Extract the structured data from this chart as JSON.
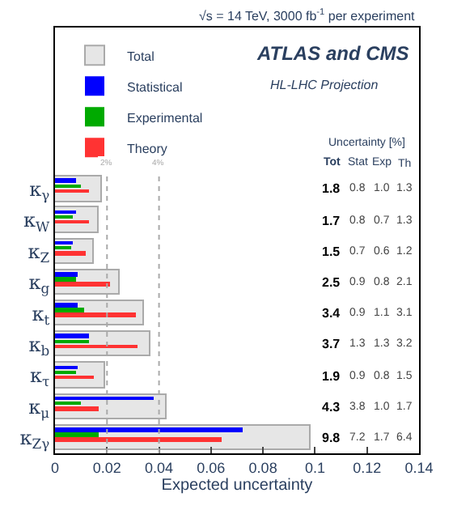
{
  "chart_data": {
    "type": "bar",
    "orientation": "horizontal",
    "title": "ATLAS and CMS",
    "subtitle": "HL-LHC Projection",
    "xlabel": "Expected uncertainty",
    "categories": [
      "κ$_{γ}$",
      "κ$_{W}$",
      "κ$_{Z}$",
      "κ$_{g}$",
      "κ$_{t}$",
      "κ$_{b}$",
      "κ$_{τ}$",
      "κ$_{μ}$",
      "κ$_{Zγ}$"
    ],
    "series": [
      {
        "name": "Total",
        "color": "#e6e6e6",
        "values": [
          0.018,
          0.017,
          0.015,
          0.025,
          0.034,
          0.037,
          0.019,
          0.043,
          0.098
        ]
      },
      {
        "name": "Statistical",
        "color": "#0000ff",
        "values": [
          0.008,
          0.008,
          0.007,
          0.009,
          0.009,
          0.013,
          0.009,
          0.038,
          0.072
        ]
      },
      {
        "name": "Experimental",
        "color": "#00aa00",
        "values": [
          0.01,
          0.007,
          0.006,
          0.008,
          0.011,
          0.013,
          0.008,
          0.01,
          0.017
        ]
      },
      {
        "name": "Theory",
        "color": "#ff3333",
        "values": [
          0.013,
          0.013,
          0.012,
          0.021,
          0.031,
          0.032,
          0.015,
          0.017,
          0.064
        ]
      }
    ],
    "xlim": [
      0,
      0.14
    ],
    "xticks": [
      0,
      0.02,
      0.04,
      0.06,
      0.08,
      0.1,
      0.12,
      0.14
    ],
    "ref_lines": [
      {
        "axis": "x",
        "value": 0.02,
        "label": "2%",
        "color": "#aaaaaa",
        "line_style": "dotted"
      },
      {
        "axis": "x",
        "value": 0.04,
        "label": "4%",
        "color": "#aaaaaa",
        "line_style": "dotted"
      }
    ],
    "annotations": [
      "√s = 14 TeV, 3000 fb$^{-1}$ per experiment",
      "Uncertainty [%]",
      "Tot",
      "Stat",
      "Exp",
      "Th",
      "1.8",
      "0.8",
      "1.0",
      "1.3",
      "1.7",
      "0.8",
      "0.7",
      "1.3",
      "1.5",
      "0.7",
      "0.6",
      "1.2",
      "2.5",
      "0.9",
      "0.8",
      "2.1",
      "3.4",
      "0.9",
      "1.1",
      "3.1",
      "3.7",
      "1.3",
      "1.3",
      "3.2",
      "1.9",
      "0.9",
      "0.8",
      "1.5",
      "4.3",
      "3.8",
      "1.0",
      "1.7",
      "9.8",
      "7.2",
      "1.7",
      "6.4"
    ],
    "legend": "top left"
  }
}
